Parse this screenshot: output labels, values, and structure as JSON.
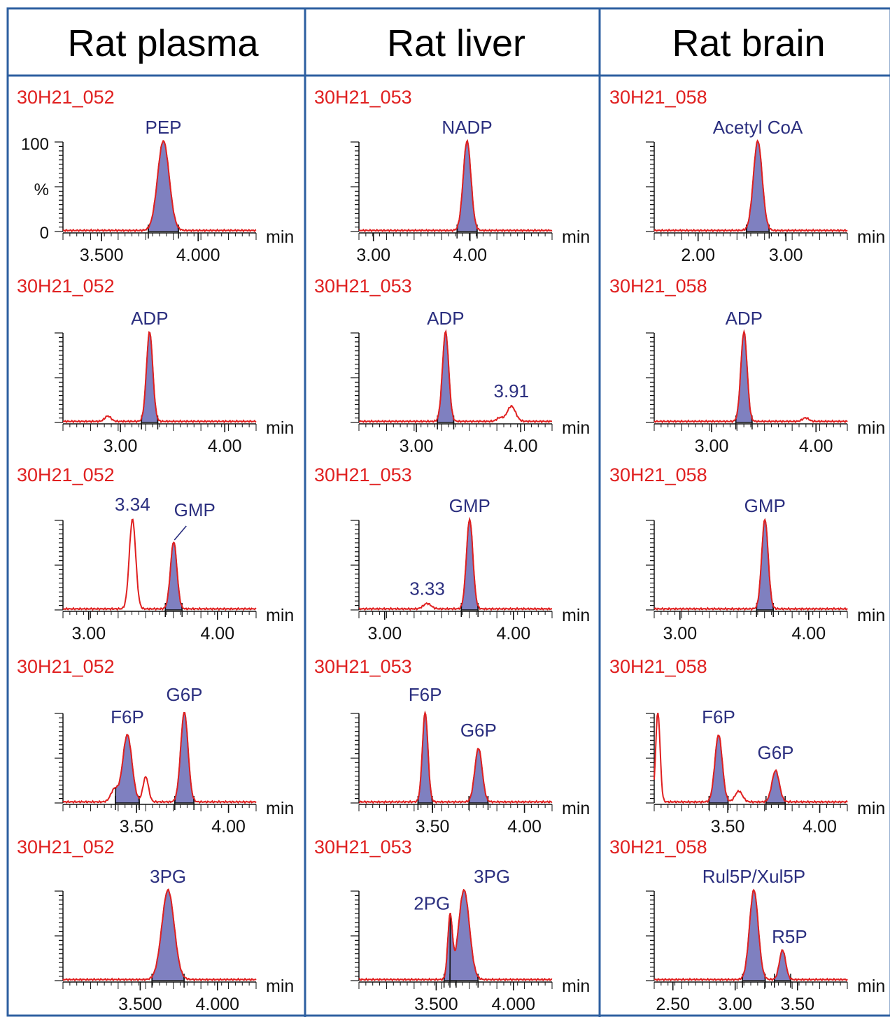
{
  "columns": [
    {
      "title": "Rat plasma",
      "sample_id": "30H21_052"
    },
    {
      "title": "Rat liver",
      "sample_id": "30H21_053"
    },
    {
      "title": "Rat brain",
      "sample_id": "30H21_058"
    }
  ],
  "x_unit": "min",
  "y_axis": {
    "top": "100",
    "label": "%",
    "bottom": "0"
  },
  "colors": {
    "trace": "#e02020",
    "peak_fill": "#7f80c0",
    "peak_outline": "#111111",
    "label": "#2b2f7f",
    "border": "#2d5fa0"
  },
  "chart_data": [
    {
      "type": "line",
      "panel": "plasma-PEP",
      "sample": "30H21_052",
      "x_ticks": [
        "3.500",
        "4.000"
      ],
      "xlim": [
        3.3,
        4.3
      ],
      "ylim": [
        0,
        100
      ],
      "series": [
        {
          "name": "PEP",
          "peaks": [
            {
              "rt": 3.82,
              "height": 100,
              "width": 0.03,
              "filled": true
            }
          ]
        }
      ],
      "annotations": []
    },
    {
      "type": "line",
      "panel": "liver-NADP",
      "sample": "30H21_053",
      "x_ticks": [
        "3.00",
        "4.00"
      ],
      "xlim": [
        2.85,
        4.85
      ],
      "ylim": [
        0,
        100
      ],
      "series": [
        {
          "name": "NADP",
          "peaks": [
            {
              "rt": 3.97,
              "height": 100,
              "width": 0.04,
              "filled": true
            }
          ]
        }
      ],
      "annotations": []
    },
    {
      "type": "line",
      "panel": "brain-AcetylCoA",
      "sample": "30H21_058",
      "x_ticks": [
        "2.00",
        "3.00"
      ],
      "xlim": [
        1.5,
        3.7
      ],
      "ylim": [
        0,
        100
      ],
      "series": [
        {
          "name": "Acetyl CoA",
          "peaks": [
            {
              "rt": 2.68,
              "height": 100,
              "width": 0.05,
              "filled": true
            }
          ]
        }
      ],
      "annotations": []
    },
    {
      "type": "line",
      "panel": "plasma-ADP",
      "sample": "30H21_052",
      "x_ticks": [
        "3.00",
        "4.00"
      ],
      "xlim": [
        2.45,
        4.3
      ],
      "ylim": [
        0,
        100
      ],
      "series": [
        {
          "name": "ADP",
          "peaks": [
            {
              "rt": 3.28,
              "height": 100,
              "width": 0.03,
              "filled": true
            },
            {
              "rt": 2.88,
              "height": 6,
              "width": 0.03,
              "filled": false
            }
          ]
        }
      ],
      "annotations": []
    },
    {
      "type": "line",
      "panel": "liver-ADP",
      "sample": "30H21_053",
      "x_ticks": [
        "3.00",
        "4.00"
      ],
      "xlim": [
        2.45,
        4.3
      ],
      "ylim": [
        0,
        100
      ],
      "series": [
        {
          "name": "ADP",
          "peaks": [
            {
              "rt": 3.28,
              "height": 100,
              "width": 0.03,
              "filled": true
            },
            {
              "rt": 3.91,
              "height": 17,
              "width": 0.04,
              "filled": false
            },
            {
              "rt": 3.8,
              "height": 4,
              "width": 0.03,
              "filled": false
            }
          ]
        }
      ],
      "annotations": [
        "3.91"
      ]
    },
    {
      "type": "line",
      "panel": "brain-ADP",
      "sample": "30H21_058",
      "x_ticks": [
        "3.00",
        "4.00"
      ],
      "xlim": [
        2.45,
        4.3
      ],
      "ylim": [
        0,
        100
      ],
      "series": [
        {
          "name": "ADP",
          "peaks": [
            {
              "rt": 3.31,
              "height": 100,
              "width": 0.03,
              "filled": true
            },
            {
              "rt": 3.9,
              "height": 4,
              "width": 0.03,
              "filled": false
            }
          ]
        }
      ],
      "annotations": []
    },
    {
      "type": "line",
      "panel": "plasma-GMP",
      "sample": "30H21_052",
      "x_ticks": [
        "3.00",
        "4.00"
      ],
      "xlim": [
        2.8,
        4.3
      ],
      "ylim": [
        0,
        100
      ],
      "series": [
        {
          "name": "GMP",
          "peaks": [
            {
              "rt": 3.66,
              "height": 75,
              "width": 0.025,
              "filled": true
            },
            {
              "rt": 3.34,
              "height": 100,
              "width": 0.025,
              "filled": false
            }
          ]
        }
      ],
      "annotations": [
        "3.34"
      ]
    },
    {
      "type": "line",
      "panel": "liver-GMP",
      "sample": "30H21_053",
      "x_ticks": [
        "3.00",
        "4.00"
      ],
      "xlim": [
        2.8,
        4.3
      ],
      "ylim": [
        0,
        100
      ],
      "series": [
        {
          "name": "GMP",
          "peaks": [
            {
              "rt": 3.66,
              "height": 100,
              "width": 0.025,
              "filled": true
            },
            {
              "rt": 3.33,
              "height": 6,
              "width": 0.03,
              "filled": false
            }
          ]
        }
      ],
      "annotations": [
        "3.33"
      ]
    },
    {
      "type": "line",
      "panel": "brain-GMP",
      "sample": "30H21_058",
      "x_ticks": [
        "3.00",
        "4.00"
      ],
      "xlim": [
        2.8,
        4.3
      ],
      "ylim": [
        0,
        100
      ],
      "series": [
        {
          "name": "GMP",
          "peaks": [
            {
              "rt": 3.66,
              "height": 100,
              "width": 0.025,
              "filled": true
            }
          ]
        }
      ],
      "annotations": []
    },
    {
      "type": "line",
      "panel": "plasma-F6P-G6P",
      "sample": "30H21_052",
      "x_ticks": [
        "3.50",
        "4.00"
      ],
      "xlim": [
        3.1,
        4.15
      ],
      "ylim": [
        0,
        100
      ],
      "series": [
        {
          "name": "F6P",
          "peaks": [
            {
              "rt": 3.45,
              "height": 75,
              "width": 0.025,
              "filled": true
            },
            {
              "rt": 3.55,
              "height": 28,
              "width": 0.015,
              "filled": false
            },
            {
              "rt": 3.38,
              "height": 14,
              "width": 0.02,
              "filled": false
            }
          ]
        },
        {
          "name": "G6P",
          "peaks": [
            {
              "rt": 3.76,
              "height": 100,
              "width": 0.02,
              "filled": true
            }
          ]
        }
      ],
      "annotations": []
    },
    {
      "type": "line",
      "panel": "liver-F6P-G6P",
      "sample": "30H21_053",
      "x_ticks": [
        "3.50",
        "4.00"
      ],
      "xlim": [
        3.1,
        4.15
      ],
      "ylim": [
        0,
        100
      ],
      "series": [
        {
          "name": "F6P",
          "peaks": [
            {
              "rt": 3.46,
              "height": 100,
              "width": 0.015,
              "filled": true
            }
          ]
        },
        {
          "name": "G6P",
          "peaks": [
            {
              "rt": 3.75,
              "height": 60,
              "width": 0.02,
              "filled": true
            }
          ]
        }
      ],
      "annotations": []
    },
    {
      "type": "line",
      "panel": "brain-F6P-G6P",
      "sample": "30H21_058",
      "x_ticks": [
        "3.50",
        "4.00"
      ],
      "xlim": [
        3.1,
        4.15
      ],
      "ylim": [
        0,
        100
      ],
      "series": [
        {
          "name": "F6P",
          "peaks": [
            {
              "rt": 3.45,
              "height": 75,
              "width": 0.02,
              "filled": true
            },
            {
              "rt": 3.56,
              "height": 12,
              "width": 0.02,
              "filled": false
            },
            {
              "rt": 3.12,
              "height": 100,
              "width": 0.012,
              "filled": false
            }
          ]
        },
        {
          "name": "G6P",
          "peaks": [
            {
              "rt": 3.76,
              "height": 35,
              "width": 0.02,
              "filled": true
            }
          ]
        }
      ],
      "annotations": []
    },
    {
      "type": "line",
      "panel": "plasma-3PG",
      "sample": "30H21_052",
      "x_ticks": [
        "3.500",
        "4.000"
      ],
      "xlim": [
        3.0,
        4.25
      ],
      "ylim": [
        0,
        100
      ],
      "series": [
        {
          "name": "3PG",
          "peaks": [
            {
              "rt": 3.68,
              "height": 100,
              "width": 0.04,
              "filled": true
            }
          ]
        }
      ],
      "annotations": []
    },
    {
      "type": "line",
      "panel": "liver-2PG-3PG",
      "sample": "30H21_053",
      "x_ticks": [
        "3.500",
        "4.000"
      ],
      "xlim": [
        3.0,
        4.25
      ],
      "ylim": [
        0,
        100
      ],
      "series": [
        {
          "name": "2PG",
          "peaks": [
            {
              "rt": 3.59,
              "height": 70,
              "width": 0.015,
              "filled": true
            }
          ]
        },
        {
          "name": "3PG",
          "peaks": [
            {
              "rt": 3.68,
              "height": 100,
              "width": 0.035,
              "filled": true
            }
          ]
        }
      ],
      "annotations": []
    },
    {
      "type": "line",
      "panel": "brain-Rul5P-R5P",
      "sample": "30H21_058",
      "x_ticks": [
        "2.50",
        "3.00",
        "3.50"
      ],
      "xlim": [
        2.35,
        3.9
      ],
      "ylim": [
        0,
        100
      ],
      "series": [
        {
          "name": "Rul5P/Xul5P",
          "peaks": [
            {
              "rt": 3.15,
              "height": 100,
              "width": 0.035,
              "filled": true
            }
          ]
        },
        {
          "name": "R5P",
          "peaks": [
            {
              "rt": 3.38,
              "height": 33,
              "width": 0.025,
              "filled": true
            }
          ]
        }
      ],
      "annotations": []
    }
  ]
}
